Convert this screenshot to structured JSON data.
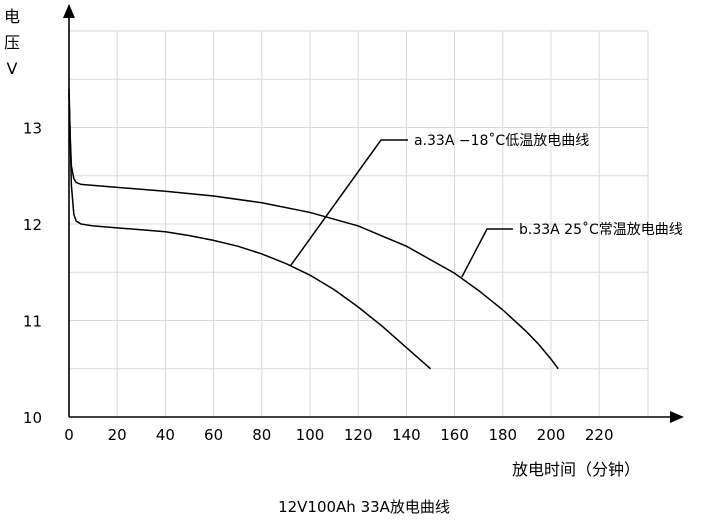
{
  "chart_data": {
    "type": "line",
    "title": "12V100Ah 33A放电曲线",
    "xlabel": "放电时间（分钟）",
    "ylabel_lines": [
      "电",
      "压",
      "V"
    ],
    "xlim": [
      0,
      240
    ],
    "ylim": [
      10,
      14
    ],
    "x_ticks": [
      0,
      20,
      40,
      60,
      80,
      100,
      120,
      140,
      160,
      180,
      200,
      220
    ],
    "y_ticks": [
      10,
      11,
      12,
      13
    ],
    "grid": true,
    "series": [
      {
        "name": "a.33A -18°C低温放电曲线",
        "label_text": "a.33A  −18˚C低温放电曲线",
        "x": [
          0,
          0.5,
          1,
          2,
          3,
          5,
          10,
          20,
          30,
          40,
          50,
          60,
          70,
          80,
          90,
          100,
          110,
          120,
          130,
          140,
          145,
          150
        ],
        "y": [
          13.4,
          12.9,
          12.4,
          12.1,
          12.03,
          12.0,
          11.98,
          11.96,
          11.94,
          11.92,
          11.88,
          11.83,
          11.77,
          11.69,
          11.59,
          11.47,
          11.32,
          11.14,
          10.94,
          10.72,
          10.61,
          10.5
        ]
      },
      {
        "name": "b.33A 25°C常温放电曲线",
        "label_text": "b.33A  25˚C常温放电曲线",
        "x": [
          0,
          0.5,
          1,
          2,
          3,
          5,
          10,
          20,
          40,
          60,
          80,
          100,
          120,
          140,
          160,
          170,
          180,
          190,
          195,
          200,
          203
        ],
        "y": [
          13.35,
          12.9,
          12.6,
          12.47,
          12.43,
          12.41,
          12.4,
          12.38,
          12.34,
          12.29,
          12.22,
          12.12,
          11.98,
          11.77,
          11.49,
          11.31,
          11.11,
          10.88,
          10.75,
          10.6,
          10.5
        ]
      }
    ],
    "annotations": [
      {
        "series": 0,
        "text": "a.33A  −18˚C低温放电曲线",
        "point": [
          92,
          11.57
        ]
      },
      {
        "series": 1,
        "text": "b.33A  25˚C常温放电曲线",
        "point": [
          163,
          11.45
        ]
      }
    ]
  }
}
